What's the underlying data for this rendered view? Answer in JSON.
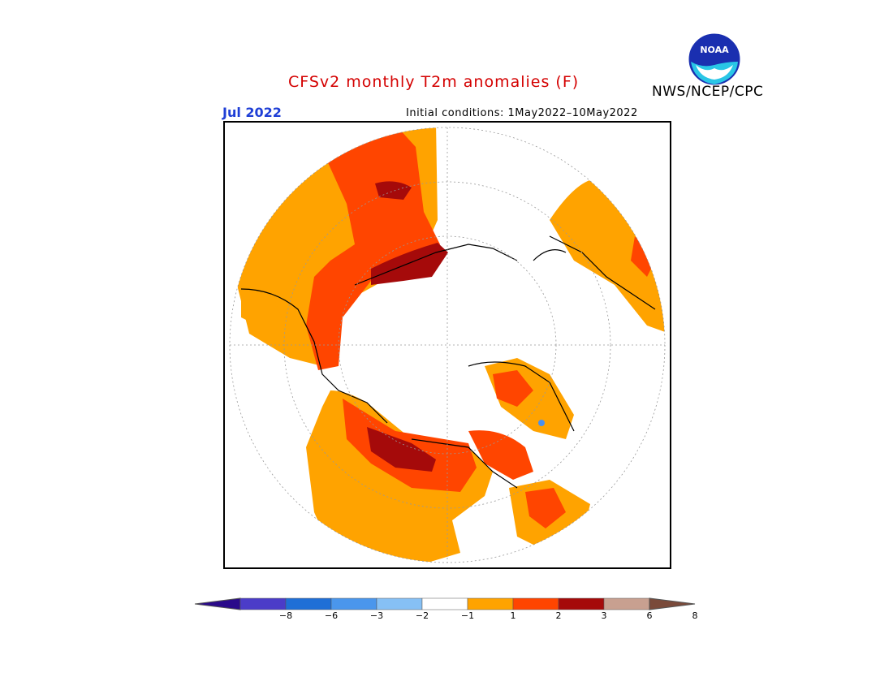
{
  "header": {
    "title": "CFSv2 monthly T2m anomalies (F)",
    "month": "Jul 2022",
    "initial_conditions": "Initial conditions: 1May2022–10May2022",
    "agency": "NWS/NCEP/CPC",
    "logo_text": "NOAA"
  },
  "colors": {
    "title": "#d40000",
    "month": "#1f3fd6",
    "warm_1_2": "#ffa300",
    "warm_2_3": "#ff4500",
    "warm_3_6": "#a50a0a",
    "cool_1_2": "#7fbfff",
    "cool_2_3": "#4a90f0"
  },
  "colorbar": {
    "segments": [
      {
        "range": "< -8",
        "color": "#2a0a8a"
      },
      {
        "range": "-8 to -6",
        "color": "#4b3cc8"
      },
      {
        "range": "-6 to -3",
        "color": "#1f6fd6"
      },
      {
        "range": "-3 to -2",
        "color": "#4a96ec"
      },
      {
        "range": "-2 to -1",
        "color": "#86c0f5"
      },
      {
        "range": "-1 to 1",
        "color": "#ffffff"
      },
      {
        "range": "1 to 2",
        "color": "#ffa300"
      },
      {
        "range": "2 to 3",
        "color": "#ff4500"
      },
      {
        "range": "3 to 6",
        "color": "#a50a0a"
      },
      {
        "range": "6 to 8",
        "color": "#c8a090"
      },
      {
        "range": "> 8",
        "color": "#7a4a3a"
      }
    ],
    "ticks": [
      "−8",
      "−6",
      "−3",
      "−2",
      "−1",
      "1",
      "2",
      "3",
      "6",
      "8"
    ]
  }
}
